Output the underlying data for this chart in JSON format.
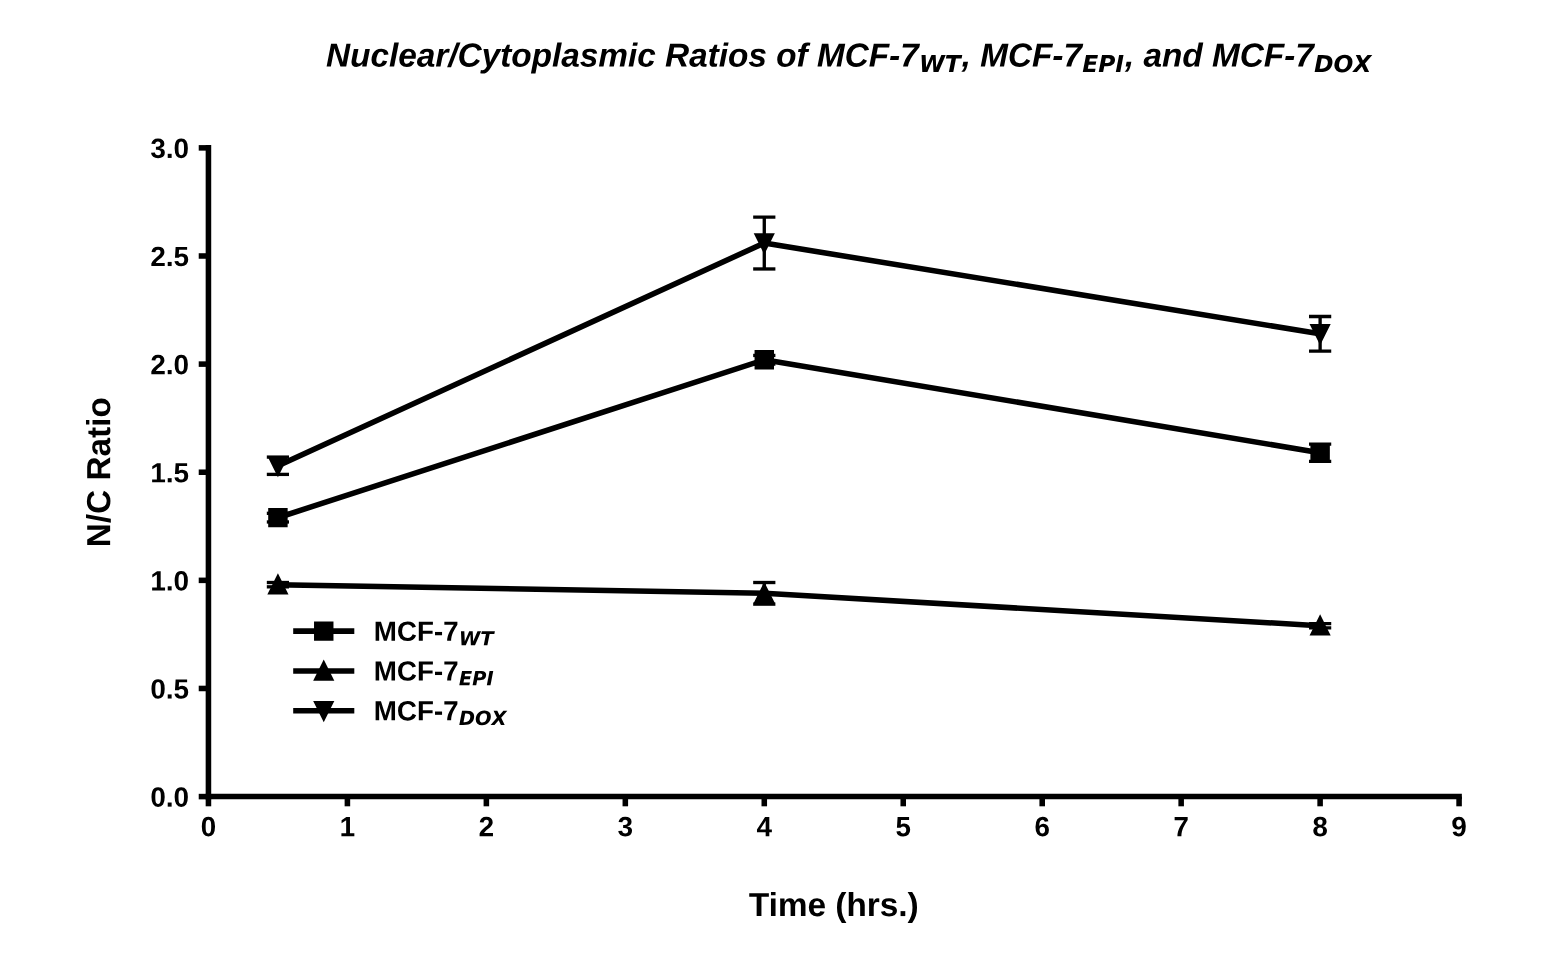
{
  "chart_data": {
    "type": "line",
    "title": "Nuclear/Cytoplasmic Ratios of MCF-7$_{WT}$, MCF-7$_{EPI}$, and MCF-7$_{DOX}$",
    "xlabel": "Time (hrs.)",
    "ylabel": "N/C Ratio",
    "x": [
      0.5,
      4,
      8
    ],
    "series": [
      {
        "name": "MCF-7$_{WT}$",
        "color": "#000000",
        "marker": "square",
        "values": [
          1.29,
          2.02,
          1.59
        ],
        "errors": [
          0.02,
          0.02,
          0.04
        ]
      },
      {
        "name": "MCF-7$_{EPI}$",
        "color": "#000000",
        "marker": "triangle",
        "values": [
          0.98,
          0.94,
          0.79
        ],
        "errors": [
          0.01,
          0.05,
          0.01
        ]
      },
      {
        "name": "MCF-7$_{DOX}$",
        "color": "#000000",
        "marker": "triangle_down",
        "values": [
          1.53,
          2.56,
          2.14
        ],
        "errors": [
          0.04,
          0.12,
          0.08
        ]
      }
    ],
    "xlim": [
      0,
      9
    ],
    "xticks": [
      0,
      1,
      2,
      3,
      4,
      5,
      6,
      7,
      8,
      9
    ],
    "ylim": [
      0,
      3.0
    ],
    "yticks": [
      {
        "value": 0,
        "label": "0.0"
      },
      0.5,
      {
        "value": 1,
        "label": "1.0"
      },
      1.5,
      {
        "value": 2,
        "label": "2.0"
      },
      2.5,
      {
        "value": 3,
        "label": "3.0"
      }
    ],
    "legend": "bottom left",
    "grid": false,
    "line_style": "solid"
  }
}
